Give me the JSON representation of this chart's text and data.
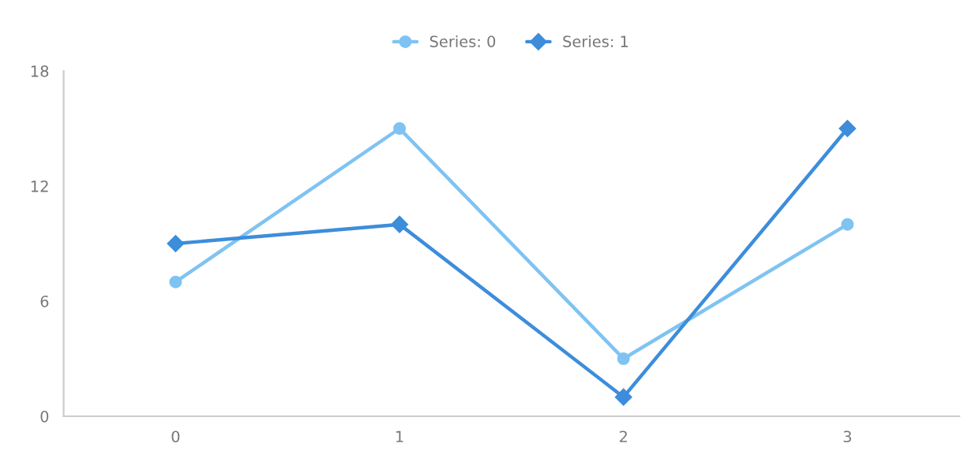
{
  "chart_data": {
    "type": "line",
    "categories": [
      "0",
      "1",
      "2",
      "3"
    ],
    "series": [
      {
        "name": "Series: 0",
        "color": "#7fc3f2",
        "marker": "circle",
        "values": [
          7,
          15,
          3,
          10
        ]
      },
      {
        "name": "Series: 1",
        "color": "#3d8ddb",
        "marker": "diamond",
        "values": [
          9,
          10,
          1,
          15
        ]
      }
    ],
    "ylim": [
      0,
      18
    ],
    "yticks": [
      0,
      6,
      12,
      18
    ],
    "grid": false,
    "legend": "top"
  }
}
